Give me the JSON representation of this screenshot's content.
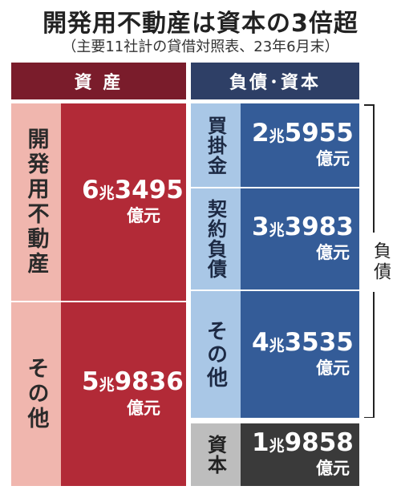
{
  "title": "開発用不動産は資本の3倍超",
  "subtitle": "（主要11社計の貸借対照表、23年6月末）",
  "colors": {
    "asset_header": "#7a1c2b",
    "asset_label_bg": "#f0b6ae",
    "asset_value_bg": "#b22a37",
    "liab_header": "#2e3f66",
    "liab_label_bg": "#a9c7e6",
    "liab_value_bg": "#345c98",
    "equity_label_bg": "#bdbdbd",
    "equity_value_bg": "#3a3a3a"
  },
  "assets": {
    "header": "資 産",
    "items": [
      {
        "label": "開発用不動産",
        "amount_cho": "6",
        "amount_rest": "3495",
        "unit": "億元"
      },
      {
        "label": "その他",
        "amount_cho": "5",
        "amount_rest": "9836",
        "unit": "億元"
      }
    ]
  },
  "liabilities_equity": {
    "header": "負債･資本",
    "items": [
      {
        "label": "買掛金",
        "amount_cho": "2",
        "amount_rest": "5955",
        "unit": "億元"
      },
      {
        "label": "契約負債",
        "amount_cho": "3",
        "amount_rest": "3983",
        "unit": "億元"
      },
      {
        "label": "その他",
        "amount_cho": "4",
        "amount_rest": "3535",
        "unit": "億元"
      },
      {
        "label": "資本",
        "amount_cho": "1",
        "amount_rest": "9858",
        "unit": "億元"
      }
    ],
    "bracket_label": "負債"
  },
  "cho_symbol": "兆"
}
